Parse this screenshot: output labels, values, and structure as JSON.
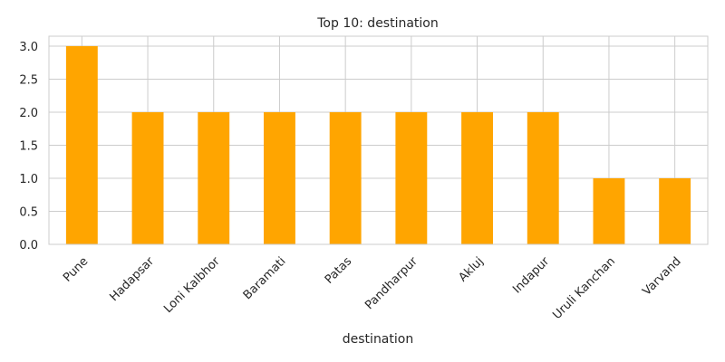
{
  "chart_data": {
    "type": "bar",
    "title": "Top 10: destination",
    "xlabel": "destination",
    "ylabel": "",
    "categories": [
      "Pune",
      "Hadapsar",
      "Loni Kalbhor",
      "Baramati",
      "Patas",
      "Pandharpur",
      "Akluj",
      "Indapur",
      "Uruli Kanchan",
      "Varvand"
    ],
    "values": [
      3,
      2,
      2,
      2,
      2,
      2,
      2,
      2,
      1,
      1
    ],
    "ylim": [
      0,
      3.15
    ],
    "yticks": [
      "0.0",
      "0.5",
      "1.0",
      "1.5",
      "2.0",
      "2.5",
      "3.0"
    ],
    "grid": true,
    "bar_color": "#FFA500",
    "grid_color": "#CCCCCC"
  }
}
